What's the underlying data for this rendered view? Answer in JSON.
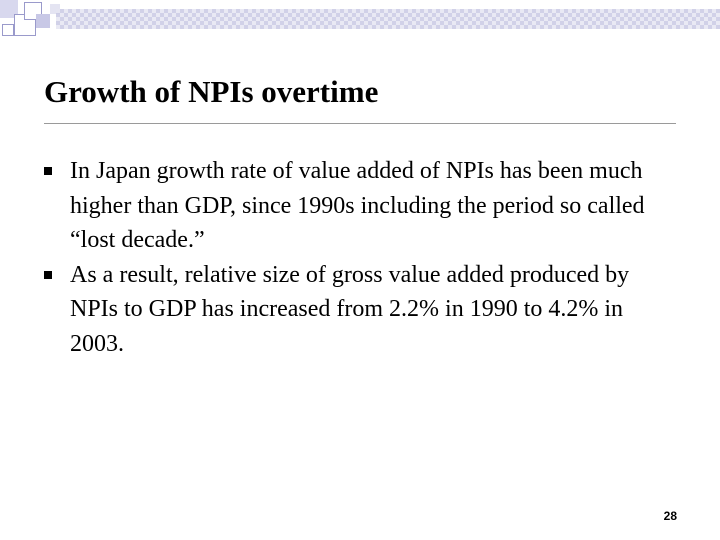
{
  "slide": {
    "title": "Growth of NPIs overtime",
    "bullets": [
      {
        "text": "In Japan growth rate of value added of NPIs has been much higher than GDP, since 1990s including the period so called “lost decade.”"
      },
      {
        "text": "As a result, relative size of gross value added produced by NPIs to GDP has increased from  2.2% in 1990 to 4.2% in 2003."
      }
    ],
    "page_number": "28"
  },
  "theme": {
    "bullet_icon": "square-bullet-icon",
    "accent_color": "#c9c9e4",
    "text_color": "#000000"
  }
}
